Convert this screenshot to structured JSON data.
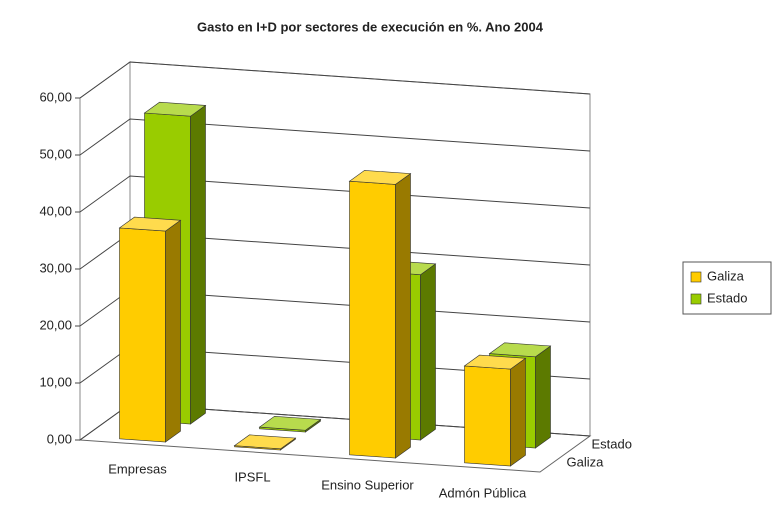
{
  "chart_data": {
    "type": "bar3d",
    "title": "Gasto en I+D por sectores de execución en %. Ano 2004",
    "categories": [
      "Empresas",
      "IPSFL",
      "Ensino Superior",
      "Admón Pública"
    ],
    "series": [
      {
        "name": "Galiza",
        "color": "#ffcc00",
        "values": [
          37,
          0.2,
          48,
          17
        ]
      },
      {
        "name": "Estado",
        "color": "#99cc00",
        "values": [
          54,
          0.3,
          29,
          16
        ]
      }
    ],
    "ylim": [
      0,
      60
    ],
    "yticks": [
      {
        "value": 0,
        "label": "0,00"
      },
      {
        "value": 10,
        "label": "10,00"
      },
      {
        "value": 20,
        "label": "20,00"
      },
      {
        "value": 30,
        "label": "30,00"
      },
      {
        "value": 40,
        "label": "40,00"
      },
      {
        "value": 50,
        "label": "50,00"
      },
      {
        "value": 60,
        "label": "60,00"
      }
    ],
    "grid": true,
    "legend": "right"
  }
}
